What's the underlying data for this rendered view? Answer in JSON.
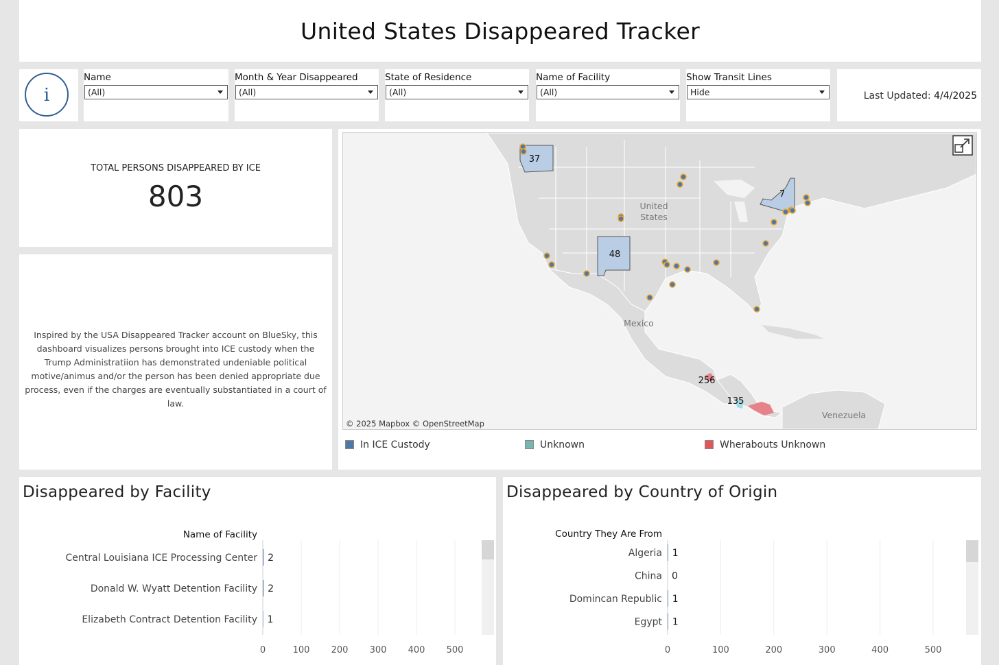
{
  "title": "United States Disappeared Tracker",
  "info_icon": {
    "icon": "info-icon",
    "glyph": "i"
  },
  "filters": [
    {
      "label": "Name",
      "value": "(All)"
    },
    {
      "label": "Month & Year Disappeared",
      "value": "(All)"
    },
    {
      "label": "State of Residence",
      "value": "(All)"
    },
    {
      "label": "Name of Facility",
      "value": "(All)"
    },
    {
      "label": "Show Transit Lines",
      "value": "Hide"
    }
  ],
  "last_updated": {
    "label": "Last Updated:",
    "value": "4/4/2025"
  },
  "total": {
    "label": "TOTAL PERSONS DISAPPEARED BY ICE",
    "value": "803"
  },
  "description": "Inspired by the USA Disappeared Tracker account on BlueSky, this dashboard visualizes persons brought into ICE custody when the Trump Administratiion has demonstrated undeniable political motive/animus and/or the person has been denied appropriate due process, even if the charges are eventually substantiated in a court of law.",
  "map": {
    "place_labels": [
      "United",
      "States",
      "Mexico",
      "Venezuela"
    ],
    "region_counts": [
      "37",
      "48",
      "7",
      "256",
      "135"
    ],
    "attribution": "© 2025 Mapbox  © OpenStreetMap",
    "expand_icon": "expand-icon",
    "colors": {
      "in_custody": "#4e79a7",
      "unknown": "#76b7b2",
      "whereabouts_unknown": "#e15759",
      "highlight": "#b9cde4",
      "dot_ring": "#f0a830"
    }
  },
  "legend": [
    {
      "label": "In ICE Custody",
      "color": "#4e79a7"
    },
    {
      "label": "Unknown",
      "color": "#76b7b2"
    },
    {
      "label": "Wherabouts Unknown",
      "color": "#e15759"
    }
  ],
  "chart_data": [
    {
      "type": "bar",
      "title": "Disappeared by  Facility",
      "category_header": "Name of Facility",
      "categories": [
        "Central Louisiana ICE Processing Center",
        "Donald W. Wyatt Detention Facility",
        "Elizabeth Contract Detention Facility"
      ],
      "values": [
        2,
        2,
        1
      ],
      "xlim": [
        0,
        500
      ],
      "xticks": [
        0,
        100,
        200,
        300,
        400,
        500
      ],
      "grid": true
    },
    {
      "type": "bar",
      "title": "Disappeared by Country of Origin",
      "category_header": "Country They Are From",
      "categories": [
        "Algeria",
        "China",
        "Domincan Republic",
        "Egypt"
      ],
      "values": [
        1,
        0,
        1,
        1
      ],
      "xlim": [
        0,
        500
      ],
      "xticks": [
        0,
        100,
        200,
        300,
        400,
        500
      ],
      "grid": true
    }
  ]
}
